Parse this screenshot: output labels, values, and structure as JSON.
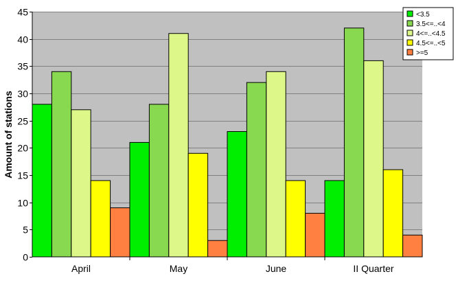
{
  "chart_data": {
    "type": "bar",
    "title": "",
    "xlabel": "",
    "ylabel": "Amount of stations",
    "ylim": [
      0,
      45
    ],
    "yticks": [
      0,
      5,
      10,
      15,
      20,
      25,
      30,
      35,
      40,
      45
    ],
    "grid": true,
    "legend_position": "top-right",
    "plot_background": "#c0c0c0",
    "categories": [
      "April",
      "May",
      "June",
      "II Quarter"
    ],
    "series": [
      {
        "name": "<3.5",
        "color": "#00ee00",
        "values": [
          28,
          21,
          23,
          14
        ]
      },
      {
        "name": "3.5<=..<4",
        "color": "#88d850",
        "values": [
          34,
          28,
          32,
          42
        ]
      },
      {
        "name": "4<=..<4.5",
        "color": "#ddf888",
        "values": [
          27,
          41,
          34,
          36
        ]
      },
      {
        "name": "4.5<=..<5",
        "color": "#ffff00",
        "values": [
          14,
          19,
          14,
          16
        ]
      },
      {
        "name": ">=5",
        "color": "#ff8040",
        "values": [
          9,
          3,
          8,
          4
        ]
      }
    ]
  }
}
